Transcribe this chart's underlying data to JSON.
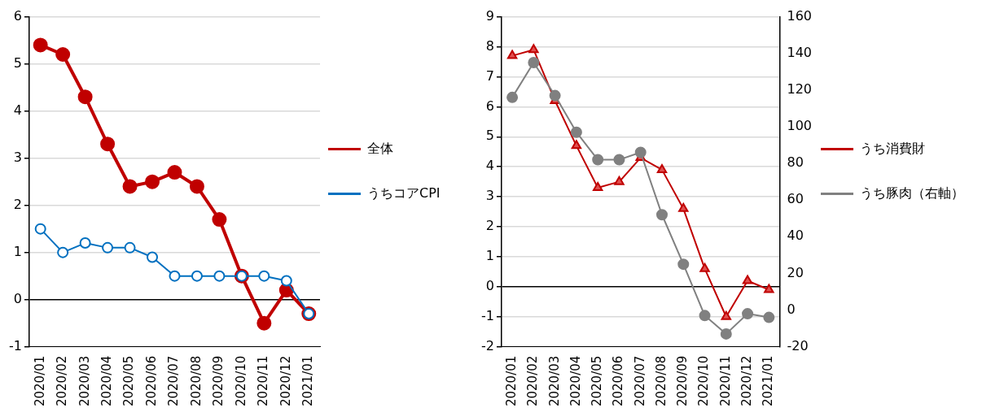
{
  "chart_data": [
    {
      "type": "line",
      "categories": [
        "2020/01",
        "2020/02",
        "2020/03",
        "2020/04",
        "2020/05",
        "2020/06",
        "2020/07",
        "2020/08",
        "2020/09",
        "2020/10",
        "2020/11",
        "2020/12",
        "2021/01"
      ],
      "ylim": [
        -1,
        6
      ],
      "yticks": [
        -1,
        0,
        1,
        2,
        3,
        4,
        5,
        6
      ],
      "grid": "y",
      "legend": "right",
      "series": [
        {
          "name": "全体",
          "color": "#c00000",
          "marker": "circle",
          "values": [
            5.4,
            5.2,
            4.3,
            3.3,
            2.4,
            2.5,
            2.7,
            2.4,
            1.7,
            0.5,
            -0.5,
            0.2,
            -0.3
          ]
        },
        {
          "name": "うちコアCPI",
          "color": "#0070c0",
          "marker": "circle",
          "values": [
            1.5,
            1.0,
            1.2,
            1.1,
            1.1,
            0.9,
            0.5,
            0.5,
            0.5,
            0.5,
            0.5,
            0.4,
            -0.3
          ]
        }
      ]
    },
    {
      "type": "line",
      "categories": [
        "2020/01",
        "2020/02",
        "2020/03",
        "2020/04",
        "2020/05",
        "2020/06",
        "2020/07",
        "2020/08",
        "2020/09",
        "2020/10",
        "2020/11",
        "2020/12",
        "2021/01"
      ],
      "ylim": [
        -2,
        9
      ],
      "yticks": [
        -2,
        -1,
        0,
        1,
        2,
        3,
        4,
        5,
        6,
        7,
        8,
        9
      ],
      "y2lim": [
        -20,
        160
      ],
      "y2ticks": [
        -20,
        0,
        20,
        40,
        60,
        80,
        100,
        120,
        140,
        160
      ],
      "grid": "y",
      "legend": "right",
      "series": [
        {
          "name": "うち消費財",
          "color": "#c00000",
          "marker": "triangle",
          "values": [
            7.7,
            7.9,
            6.2,
            4.7,
            3.3,
            3.5,
            4.3,
            3.9,
            2.6,
            0.6,
            -1.0,
            0.2,
            -0.1
          ]
        },
        {
          "name": "うち豚肉（右軸）",
          "color": "#808080",
          "marker": "circle",
          "axis": "y2",
          "values": [
            116,
            135,
            117,
            97,
            82,
            82,
            86,
            52,
            25,
            -3,
            -13,
            -2,
            -4
          ]
        }
      ]
    }
  ]
}
